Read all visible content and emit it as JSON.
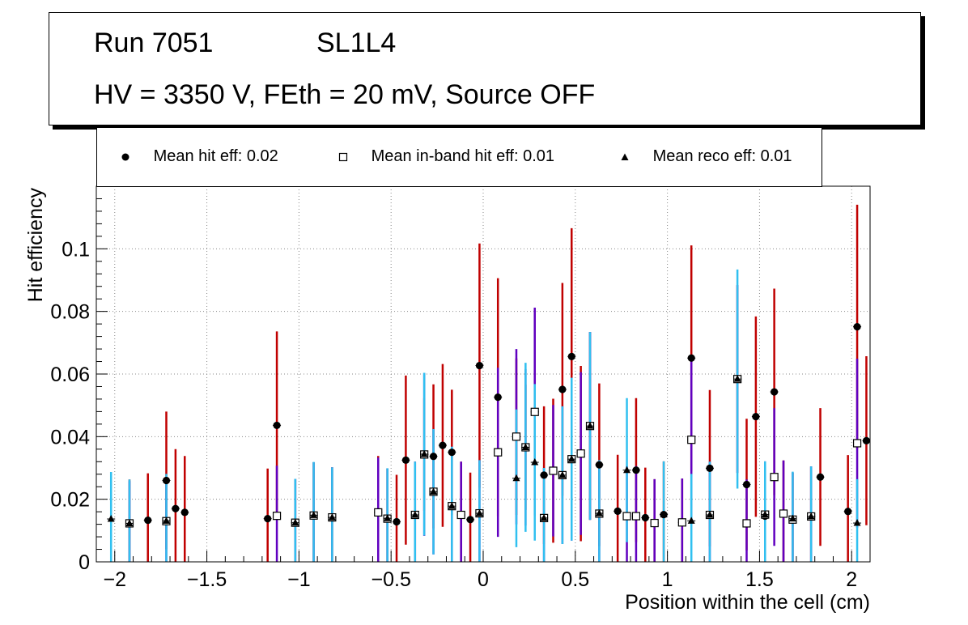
{
  "title": {
    "run": "Run 7051",
    "layer": "SL1L4",
    "conditions": "HV = 3350 V, FEth = 20 mV, Source OFF"
  },
  "legend": [
    {
      "marker": "circle",
      "label": "Mean hit  eff: 0.02"
    },
    {
      "marker": "open-square",
      "label": "Mean in-band hit eff: 0.01"
    },
    {
      "marker": "triangle",
      "label": "Mean reco eff: 0.01"
    }
  ],
  "colors": {
    "hit_err": "#c00000",
    "inband_err": "#6000c0",
    "reco_err": "#30c0f0",
    "marker": "#000000"
  },
  "chart_data": {
    "type": "scatter",
    "xlabel": "Position within the cell (cm)",
    "ylabel": "Hit efficiency",
    "xlim": [
      -2.1,
      2.1
    ],
    "ylim": [
      0,
      0.12
    ],
    "x_ticks": [
      -2,
      -1.5,
      -1,
      -0.5,
      0,
      0.5,
      1,
      1.5,
      2
    ],
    "x_tick_labels": [
      "−2",
      "−1.5",
      "−1",
      "−0.5",
      "0",
      "0.5",
      "1",
      "1.5",
      "2"
    ],
    "y_ticks": [
      0,
      0.02,
      0.04,
      0.06,
      0.08,
      0.1
    ],
    "y_tick_labels": [
      "0",
      "0.02",
      "0.04",
      "0.06",
      "0.08",
      "0.1"
    ],
    "grid": true,
    "series": [
      {
        "name": "Mean hit  eff: 0.02",
        "marker": "circle",
        "points": [
          {
            "x": -1.92,
            "y": 0.0123,
            "err": 0.014
          },
          {
            "x": -1.82,
            "y": 0.0133,
            "err": 0.015
          },
          {
            "x": -1.72,
            "y": 0.026,
            "err": 0.022
          },
          {
            "x": -1.67,
            "y": 0.017,
            "err": 0.019
          },
          {
            "x": -1.62,
            "y": 0.0158,
            "err": 0.018
          },
          {
            "x": -1.17,
            "y": 0.0138,
            "err": 0.016
          },
          {
            "x": -1.12,
            "y": 0.0436,
            "err": 0.03
          },
          {
            "x": -1.02,
            "y": 0.0125,
            "err": 0.014
          },
          {
            "x": -0.92,
            "y": 0.0148,
            "err": 0.017
          },
          {
            "x": -0.82,
            "y": 0.0142,
            "err": 0.016
          },
          {
            "x": -0.57,
            "y": 0.0158,
            "err": 0.018
          },
          {
            "x": -0.52,
            "y": 0.0138,
            "err": 0.016
          },
          {
            "x": -0.47,
            "y": 0.0128,
            "err": 0.015
          },
          {
            "x": -0.42,
            "y": 0.0325,
            "err": 0.027
          },
          {
            "x": -0.37,
            "y": 0.015,
            "err": 0.017
          },
          {
            "x": -0.32,
            "y": 0.0343,
            "err": 0.018
          },
          {
            "x": -0.27,
            "y": 0.0337,
            "err": 0.023
          },
          {
            "x": -0.22,
            "y": 0.0372,
            "err": 0.026
          },
          {
            "x": -0.17,
            "y": 0.035,
            "err": 0.02
          },
          {
            "x": -0.12,
            "y": 0.015,
            "err": 0.017
          },
          {
            "x": -0.07,
            "y": 0.0135,
            "err": 0.015
          },
          {
            "x": -0.02,
            "y": 0.0627,
            "err": 0.039
          },
          {
            "x": 0.08,
            "y": 0.0526,
            "err": 0.038
          },
          {
            "x": 0.18,
            "y": 0.04,
            "err": 0.025
          },
          {
            "x": 0.23,
            "y": 0.0366,
            "err": 0.02
          },
          {
            "x": 0.28,
            "y": 0.0479,
            "err": 0.033
          },
          {
            "x": 0.33,
            "y": 0.0277,
            "err": 0.022
          },
          {
            "x": 0.38,
            "y": 0.0291,
            "err": 0.023
          },
          {
            "x": 0.43,
            "y": 0.0551,
            "err": 0.034
          },
          {
            "x": 0.48,
            "y": 0.0656,
            "err": 0.041
          },
          {
            "x": 0.53,
            "y": 0.0346,
            "err": 0.028
          },
          {
            "x": 0.58,
            "y": 0.0434,
            "err": 0.03
          },
          {
            "x": 0.63,
            "y": 0.031,
            "err": 0.026
          },
          {
            "x": 0.73,
            "y": 0.0162,
            "err": 0.018
          },
          {
            "x": 0.83,
            "y": 0.0293,
            "err": 0.023
          },
          {
            "x": 0.88,
            "y": 0.0141,
            "err": 0.016
          },
          {
            "x": 0.93,
            "y": 0.0124,
            "err": 0.014
          },
          {
            "x": 0.98,
            "y": 0.0151,
            "err": 0.017
          },
          {
            "x": 1.08,
            "y": 0.0126,
            "err": 0.014
          },
          {
            "x": 1.13,
            "y": 0.0651,
            "err": 0.036
          },
          {
            "x": 1.23,
            "y": 0.0299,
            "err": 0.025
          },
          {
            "x": 1.38,
            "y": 0.0584,
            "err": 0.03
          },
          {
            "x": 1.43,
            "y": 0.0247,
            "err": 0.021
          },
          {
            "x": 1.48,
            "y": 0.0464,
            "err": 0.032
          },
          {
            "x": 1.53,
            "y": 0.0146,
            "err": 0.016
          },
          {
            "x": 1.58,
            "y": 0.0543,
            "err": 0.033
          },
          {
            "x": 1.63,
            "y": 0.0154,
            "err": 0.017
          },
          {
            "x": 1.68,
            "y": 0.0135,
            "err": 0.015
          },
          {
            "x": 1.78,
            "y": 0.0145,
            "err": 0.016
          },
          {
            "x": 1.83,
            "y": 0.0271,
            "err": 0.022
          },
          {
            "x": 1.98,
            "y": 0.0161,
            "err": 0.018
          },
          {
            "x": 2.03,
            "y": 0.0751,
            "err": 0.039
          },
          {
            "x": 2.08,
            "y": 0.0387,
            "err": 0.027
          }
        ]
      },
      {
        "name": "Mean in-band hit eff: 0.01",
        "marker": "open-square",
        "points": [
          {
            "x": -1.92,
            "y": 0.0123,
            "err": 0.0135
          },
          {
            "x": -1.72,
            "y": 0.013,
            "err": 0.014
          },
          {
            "x": -1.12,
            "y": 0.0147,
            "err": 0.016
          },
          {
            "x": -1.02,
            "y": 0.0125,
            "err": 0.014
          },
          {
            "x": -0.92,
            "y": 0.0148,
            "err": 0.017
          },
          {
            "x": -0.82,
            "y": 0.0142,
            "err": 0.016
          },
          {
            "x": -0.57,
            "y": 0.0158,
            "err": 0.0175
          },
          {
            "x": -0.52,
            "y": 0.0138,
            "err": 0.016
          },
          {
            "x": -0.37,
            "y": 0.015,
            "err": 0.017
          },
          {
            "x": -0.32,
            "y": 0.0343,
            "err": 0.026
          },
          {
            "x": -0.27,
            "y": 0.0224,
            "err": 0.02
          },
          {
            "x": -0.17,
            "y": 0.0178,
            "err": 0.019
          },
          {
            "x": -0.12,
            "y": 0.015,
            "err": 0.017
          },
          {
            "x": -0.02,
            "y": 0.0155,
            "err": 0.017
          },
          {
            "x": 0.08,
            "y": 0.035,
            "err": 0.027
          },
          {
            "x": 0.18,
            "y": 0.04,
            "err": 0.028
          },
          {
            "x": 0.23,
            "y": 0.0366,
            "err": 0.025
          },
          {
            "x": 0.28,
            "y": 0.0479,
            "err": 0.0333
          },
          {
            "x": 0.33,
            "y": 0.014,
            "err": 0.016
          },
          {
            "x": 0.38,
            "y": 0.0291,
            "err": 0.021
          },
          {
            "x": 0.43,
            "y": 0.0277,
            "err": 0.022
          },
          {
            "x": 0.48,
            "y": 0.0328,
            "err": 0.026
          },
          {
            "x": 0.53,
            "y": 0.0346,
            "err": 0.026
          },
          {
            "x": 0.58,
            "y": 0.0434,
            "err": 0.03
          },
          {
            "x": 0.63,
            "y": 0.0154,
            "err": 0.017
          },
          {
            "x": 0.78,
            "y": 0.0146,
            "err": 0.016
          },
          {
            "x": 0.83,
            "y": 0.0146,
            "err": 0.016
          },
          {
            "x": 0.93,
            "y": 0.0124,
            "err": 0.014
          },
          {
            "x": 1.08,
            "y": 0.0126,
            "err": 0.014
          },
          {
            "x": 1.13,
            "y": 0.039,
            "err": 0.027
          },
          {
            "x": 1.23,
            "y": 0.015,
            "err": 0.017
          },
          {
            "x": 1.38,
            "y": 0.0584,
            "err": 0.03
          },
          {
            "x": 1.43,
            "y": 0.0123,
            "err": 0.014
          },
          {
            "x": 1.53,
            "y": 0.0151,
            "err": 0.017
          },
          {
            "x": 1.58,
            "y": 0.0271,
            "err": 0.022
          },
          {
            "x": 1.63,
            "y": 0.0154,
            "err": 0.017
          },
          {
            "x": 1.68,
            "y": 0.0135,
            "err": 0.015
          },
          {
            "x": 1.78,
            "y": 0.0145,
            "err": 0.016
          },
          {
            "x": 2.03,
            "y": 0.0379,
            "err": 0.027
          }
        ]
      },
      {
        "name": "Mean reco eff: 0.01",
        "marker": "triangle",
        "points": [
          {
            "x": -2.02,
            "y": 0.0137,
            "err": 0.015
          },
          {
            "x": -1.92,
            "y": 0.0123,
            "err": 0.014
          },
          {
            "x": -1.72,
            "y": 0.0131,
            "err": 0.015
          },
          {
            "x": -1.02,
            "y": 0.0125,
            "err": 0.014
          },
          {
            "x": -0.92,
            "y": 0.0149,
            "err": 0.017
          },
          {
            "x": -0.82,
            "y": 0.0142,
            "err": 0.016
          },
          {
            "x": -0.52,
            "y": 0.0139,
            "err": 0.016
          },
          {
            "x": -0.37,
            "y": 0.015,
            "err": 0.017
          },
          {
            "x": -0.32,
            "y": 0.0344,
            "err": 0.026
          },
          {
            "x": -0.27,
            "y": 0.0224,
            "err": 0.02
          },
          {
            "x": -0.17,
            "y": 0.0178,
            "err": 0.019
          },
          {
            "x": -0.02,
            "y": 0.0155,
            "err": 0.017
          },
          {
            "x": 0.18,
            "y": 0.0267,
            "err": 0.022
          },
          {
            "x": 0.23,
            "y": 0.0366,
            "err": 0.027
          },
          {
            "x": 0.28,
            "y": 0.0318,
            "err": 0.025
          },
          {
            "x": 0.33,
            "y": 0.014,
            "err": 0.016
          },
          {
            "x": 0.43,
            "y": 0.0277,
            "err": 0.022
          },
          {
            "x": 0.48,
            "y": 0.0328,
            "err": 0.026
          },
          {
            "x": 0.58,
            "y": 0.0434,
            "err": 0.03
          },
          {
            "x": 0.63,
            "y": 0.0155,
            "err": 0.017
          },
          {
            "x": 0.78,
            "y": 0.0293,
            "err": 0.023
          },
          {
            "x": 0.98,
            "y": 0.0151,
            "err": 0.017
          },
          {
            "x": 1.13,
            "y": 0.0131,
            "err": 0.015
          },
          {
            "x": 1.23,
            "y": 0.015,
            "err": 0.017
          },
          {
            "x": 1.38,
            "y": 0.0584,
            "err": 0.035
          },
          {
            "x": 1.53,
            "y": 0.0151,
            "err": 0.017
          },
          {
            "x": 1.68,
            "y": 0.0138,
            "err": 0.015
          },
          {
            "x": 1.78,
            "y": 0.0145,
            "err": 0.016
          },
          {
            "x": 2.03,
            "y": 0.0124,
            "err": 0.014
          }
        ]
      }
    ]
  }
}
